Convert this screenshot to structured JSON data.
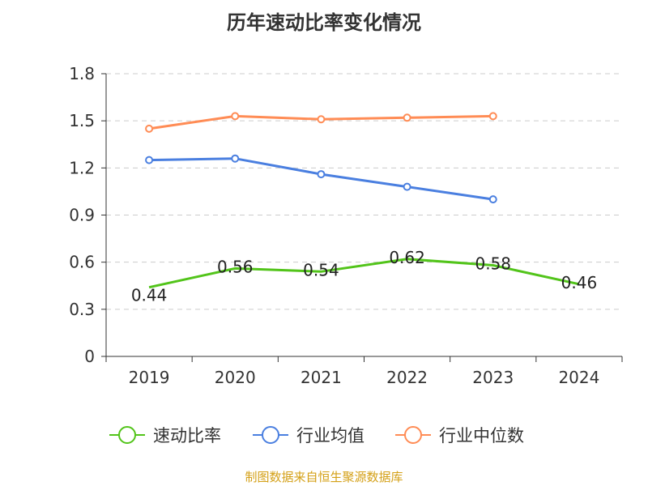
{
  "chart_data": {
    "type": "line",
    "title": "历年速动比率变化情况",
    "categories": [
      "2019",
      "2020",
      "2021",
      "2022",
      "2023",
      "2024"
    ],
    "ylim": [
      0,
      1.8
    ],
    "yticks": [
      "0",
      "0.3",
      "0.6",
      "0.9",
      "1.2",
      "1.5",
      "1.8"
    ],
    "grid": true,
    "legend_position": "bottom",
    "series": [
      {
        "name": "速动比率",
        "color": "#52c41a",
        "values": [
          0.44,
          0.56,
          0.54,
          0.62,
          0.58,
          0.46
        ],
        "labels": [
          "0.44",
          "0.56",
          "0.54",
          "0.62",
          "0.58",
          "0.46"
        ]
      },
      {
        "name": "行业均值",
        "color": "#4a7fe0",
        "values": [
          1.25,
          1.26,
          1.16,
          1.08,
          1.0,
          null
        ]
      },
      {
        "name": "行业中位数",
        "color": "#ff8c55",
        "values": [
          1.45,
          1.53,
          1.51,
          1.52,
          1.53,
          null
        ]
      }
    ]
  },
  "source": "制图数据来自恒生聚源数据库"
}
